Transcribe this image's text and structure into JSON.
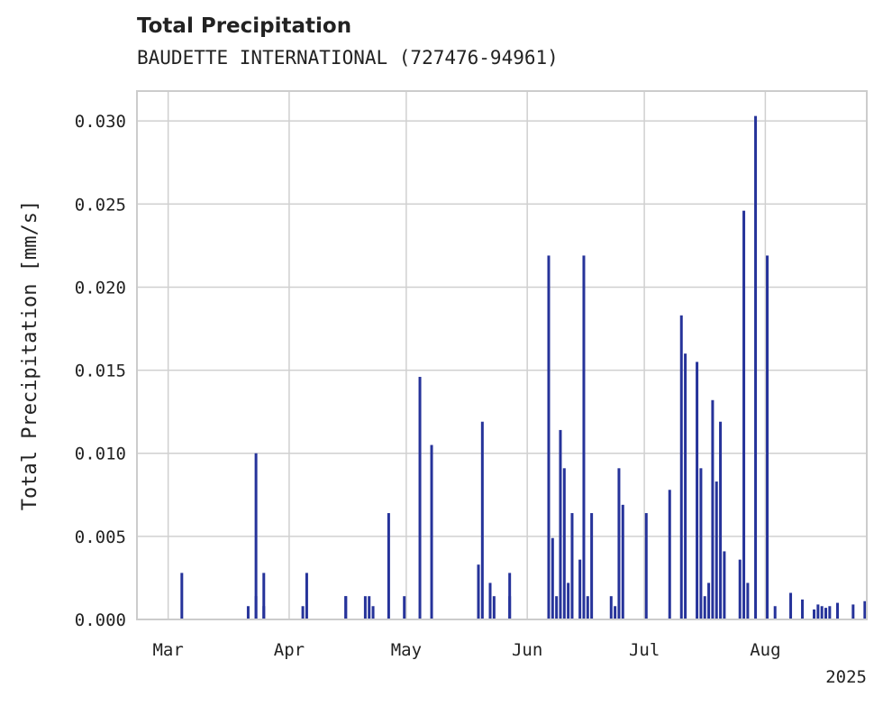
{
  "header": {
    "title": "Total Precipitation",
    "subtitle": "BAUDETTE INTERNATIONAL (727476-94961)"
  },
  "chart_data": {
    "type": "bar",
    "title": "Total Precipitation",
    "subtitle": "BAUDETTE INTERNATIONAL (727476-94961)",
    "ylabel": "Total Precipitation [mm/s]",
    "xlabel": "",
    "ylim": [
      0,
      0.0318
    ],
    "xlim": [
      "2025-02-21",
      "2025-08-27"
    ],
    "x_ticks": [
      {
        "date": "2025-03-01",
        "label": "Mar"
      },
      {
        "date": "2025-04-01",
        "label": "Apr"
      },
      {
        "date": "2025-05-01",
        "label": "May"
      },
      {
        "date": "2025-06-01",
        "label": "Jun"
      },
      {
        "date": "2025-07-01",
        "label": "Jul"
      },
      {
        "date": "2025-08-01",
        "label": "Aug"
      }
    ],
    "x_year_label": "2025",
    "y_ticks": [
      0.0,
      0.005,
      0.01,
      0.015,
      0.02,
      0.025,
      0.03
    ],
    "y_tick_labels": [
      "0.000",
      "0.005",
      "0.010",
      "0.015",
      "0.020",
      "0.025",
      "0.030"
    ],
    "grid": true,
    "series_color": "#26339a",
    "x": [
      "2025-03-04",
      "2025-03-21",
      "2025-03-23",
      "2025-03-23",
      "2025-03-25",
      "2025-03-25",
      "2025-04-04",
      "2025-04-05",
      "2025-04-15",
      "2025-04-15",
      "2025-04-20",
      "2025-04-21",
      "2025-04-22",
      "2025-04-26",
      "2025-04-30",
      "2025-05-04",
      "2025-05-07",
      "2025-05-19",
      "2025-05-20",
      "2025-05-22",
      "2025-05-23",
      "2025-05-27",
      "2025-05-27",
      "2025-06-06",
      "2025-06-07",
      "2025-06-08",
      "2025-06-09",
      "2025-06-10",
      "2025-06-11",
      "2025-06-12",
      "2025-06-14",
      "2025-06-15",
      "2025-06-16",
      "2025-06-17",
      "2025-06-22",
      "2025-06-23",
      "2025-06-24",
      "2025-06-25",
      "2025-07-01",
      "2025-07-07",
      "2025-07-10",
      "2025-07-11",
      "2025-07-14",
      "2025-07-15",
      "2025-07-16",
      "2025-07-17",
      "2025-07-18",
      "2025-07-19",
      "2025-07-20",
      "2025-07-21",
      "2025-07-25",
      "2025-07-26",
      "2025-07-27",
      "2025-07-29",
      "2025-08-01",
      "2025-08-03",
      "2025-08-07",
      "2025-08-10",
      "2025-08-13",
      "2025-08-14",
      "2025-08-15",
      "2025-08-16",
      "2025-08-17",
      "2025-08-19",
      "2025-08-23",
      "2025-08-26"
    ],
    "values": [
      0.0028,
      0.0008,
      0.01,
      0.0014,
      0.0028,
      0.0008,
      0.0008,
      0.0028,
      0.0014,
      0.0014,
      0.0014,
      0.0014,
      0.0008,
      0.0064,
      0.0014,
      0.0146,
      0.0105,
      0.0033,
      0.0119,
      0.0022,
      0.0014,
      0.0014,
      0.0028,
      0.0219,
      0.0049,
      0.0014,
      0.0114,
      0.0091,
      0.0022,
      0.0064,
      0.0036,
      0.0219,
      0.0014,
      0.0064,
      0.0014,
      0.0008,
      0.0091,
      0.0069,
      0.0064,
      0.0078,
      0.0183,
      0.016,
      0.0155,
      0.0091,
      0.0014,
      0.0022,
      0.0132,
      0.0083,
      0.0119,
      0.0041,
      0.0036,
      0.0246,
      0.0022,
      0.0303,
      0.0219,
      0.0008,
      0.0016,
      0.0012,
      0.0006,
      0.0009,
      0.0008,
      0.0007,
      0.0008,
      0.001,
      0.0009,
      0.0011
    ]
  }
}
